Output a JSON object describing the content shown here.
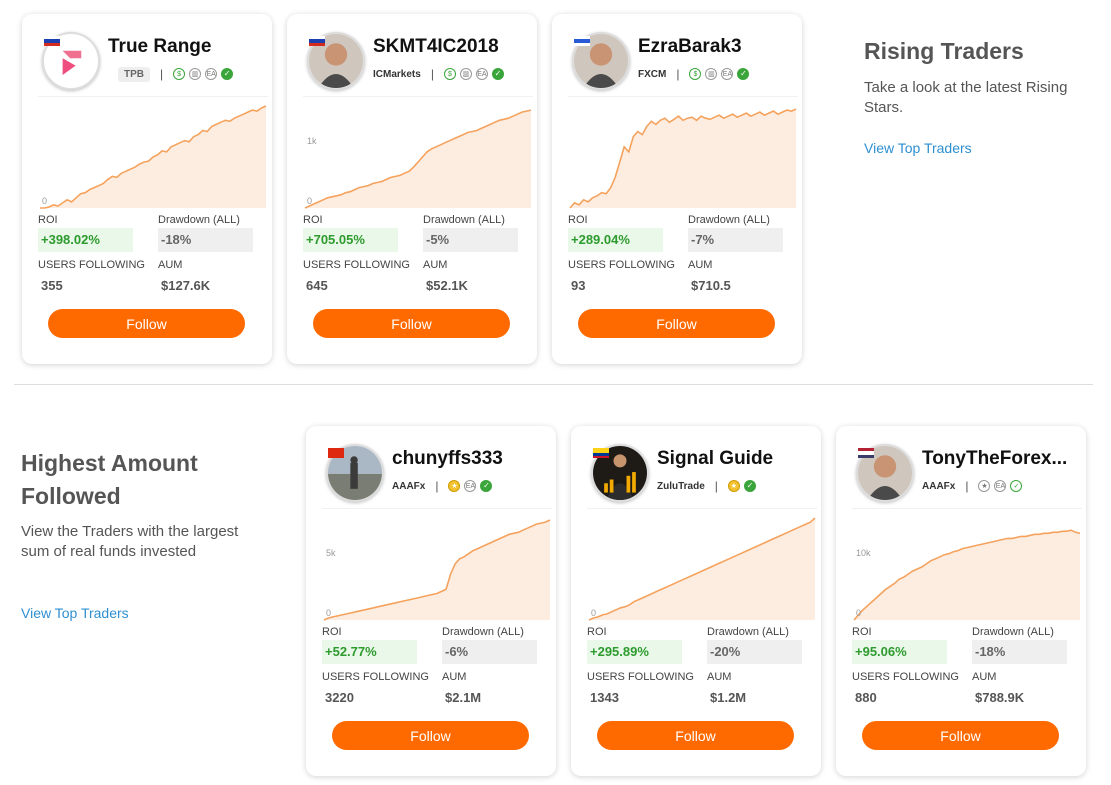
{
  "rising": {
    "title": "Rising Traders",
    "description": "Take a look at the latest Rising Stars.",
    "link": "View Top Traders"
  },
  "highest": {
    "title": "Highest Amount Followed",
    "description": "View the Traders with the largest sum of real funds invested",
    "link": "View Top Traders"
  },
  "labels": {
    "roi": "ROI",
    "drawdown": "Drawdown (ALL)",
    "users_following": "USERS FOLLOWING",
    "aum": "AUM",
    "follow": "Follow"
  },
  "colors": {
    "accent": "#ff6a00",
    "positive": "#2e9b2e",
    "link": "#2e8fd0",
    "chart_line": "#f5a25d",
    "chart_fill": "#fde9da"
  },
  "traders": [
    {
      "name": "True Range",
      "flag": "russia",
      "avatar_icon": "true-range-logo",
      "broker": "TPB",
      "badges": [
        "dollar-icon",
        "chart-icon",
        "ea-icon",
        "check-icon"
      ],
      "roi": "+398.02%",
      "drawdown": "-18%",
      "users_following": "355",
      "aum": "$127.6K",
      "y_labels": [
        "0"
      ],
      "curve": [
        0,
        0,
        1,
        3,
        2,
        5,
        8,
        6,
        10,
        14,
        15,
        18,
        20,
        22,
        24,
        28,
        31,
        30,
        34,
        36,
        38,
        40,
        43,
        45,
        46,
        50,
        52,
        56,
        55,
        60,
        62,
        64,
        66,
        65,
        70,
        72,
        76,
        75,
        80,
        82,
        84,
        86,
        85,
        88,
        90,
        92,
        94,
        96,
        95,
        98,
        100
      ]
    },
    {
      "name": "SKMT4IC2018",
      "flag": "slovakia",
      "avatar_icon": "man-portrait-icon",
      "broker": "ICMarkets",
      "badges": [
        "dollar-icon",
        "chart-icon",
        "ea-icon",
        "check-icon"
      ],
      "roi": "+705.05%",
      "drawdown": "-5%",
      "users_following": "645",
      "aum": "$52.1K",
      "y_labels": [
        "1k",
        "0"
      ],
      "curve": [
        0,
        2,
        4,
        6,
        8,
        10,
        11,
        12,
        13,
        15,
        16,
        18,
        20,
        21,
        22,
        24,
        25,
        26,
        28,
        30,
        31,
        32,
        34,
        36,
        40,
        45,
        50,
        55,
        58,
        60,
        62,
        64,
        66,
        68,
        70,
        72,
        74,
        75,
        76,
        78,
        80,
        82,
        84,
        86,
        87,
        88,
        90,
        92,
        94,
        95,
        96
      ]
    },
    {
      "name": "EzraBarak3",
      "flag": "israel",
      "avatar_icon": "man-portrait-icon",
      "broker": "FXCM",
      "badges": [
        "dollar-icon",
        "chart-icon",
        "ea-icon",
        "check-icon"
      ],
      "roi": "+289.04%",
      "drawdown": "-7%",
      "users_following": "93",
      "aum": "$710.5",
      "y_labels": [],
      "curve": [
        0,
        5,
        3,
        8,
        6,
        10,
        12,
        15,
        14,
        20,
        30,
        45,
        60,
        55,
        70,
        75,
        72,
        80,
        85,
        82,
        86,
        88,
        84,
        87,
        90,
        86,
        88,
        89,
        86,
        90,
        88,
        87,
        89,
        91,
        88,
        90,
        92,
        89,
        91,
        93,
        90,
        92,
        94,
        91,
        93,
        95,
        92,
        94,
        96,
        95,
        97
      ]
    },
    {
      "name": "chunyffs333",
      "flag": "china",
      "avatar_icon": "landscape-photo-icon",
      "broker": "AAAFx",
      "badges": [
        "medal-icon",
        "ea-icon",
        "check-icon"
      ],
      "roi": "+52.77%",
      "drawdown": "-6%",
      "users_following": "3220",
      "aum": "$2.1M",
      "y_labels": [
        "5k",
        "0"
      ],
      "curve": [
        0,
        2,
        3,
        4,
        5,
        6,
        7,
        8,
        9,
        10,
        11,
        12,
        13,
        14,
        15,
        16,
        17,
        18,
        19,
        20,
        21,
        22,
        23,
        24,
        25,
        26,
        28,
        30,
        45,
        55,
        60,
        62,
        65,
        68,
        70,
        72,
        74,
        76,
        78,
        80,
        82,
        84,
        85,
        86,
        88,
        90,
        92,
        94,
        95,
        96,
        98
      ]
    },
    {
      "name": "Signal Guide",
      "flag": "colombia",
      "avatar_icon": "businessman-chart-icon",
      "broker": "ZuluTrade",
      "badges": [
        "medal-icon",
        "check-icon"
      ],
      "roi": "+295.89%",
      "drawdown": "-20%",
      "users_following": "1343",
      "aum": "$1.2M",
      "y_labels": [
        "0"
      ],
      "curve": [
        0,
        2,
        3,
        5,
        6,
        8,
        10,
        12,
        13,
        15,
        18,
        20,
        22,
        24,
        26,
        28,
        30,
        32,
        34,
        36,
        38,
        40,
        42,
        44,
        46,
        48,
        50,
        52,
        54,
        56,
        58,
        60,
        62,
        64,
        66,
        68,
        70,
        72,
        74,
        76,
        78,
        80,
        82,
        84,
        86,
        88,
        90,
        92,
        94,
        96,
        100
      ]
    },
    {
      "name": "TonyTheForex...",
      "flag": "usa",
      "avatar_icon": "man-portrait-icon",
      "broker": "AAAFx",
      "badges": [
        "star-icon",
        "ea-icon",
        "check-outline-icon"
      ],
      "roi": "+95.06%",
      "drawdown": "-18%",
      "users_following": "880",
      "aum": "$788.9K",
      "y_labels": [
        "10k",
        "0"
      ],
      "curve": [
        0,
        5,
        10,
        14,
        18,
        22,
        26,
        30,
        33,
        36,
        40,
        42,
        45,
        48,
        50,
        52,
        55,
        58,
        60,
        62,
        64,
        65,
        67,
        68,
        70,
        71,
        72,
        73,
        74,
        75,
        76,
        77,
        78,
        79,
        80,
        80,
        81,
        82,
        82,
        83,
        84,
        84,
        85,
        85,
        86,
        86,
        87,
        87,
        88,
        86,
        85
      ]
    }
  ]
}
